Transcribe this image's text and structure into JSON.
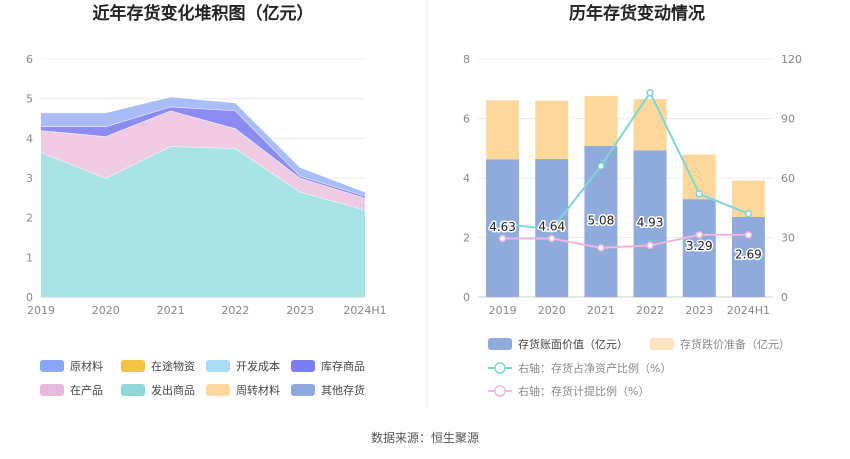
{
  "left_chart": {
    "title": "近年存货变化堆积图（亿元）",
    "legend": [
      {
        "name": "原材料",
        "color": "#8aa8f5"
      },
      {
        "name": "在途物资",
        "color": "#f5c342"
      },
      {
        "name": "开发成本",
        "color": "#a8dcf5"
      },
      {
        "name": "库存商品",
        "color": "#7b7df0"
      },
      {
        "name": "在产品",
        "color": "#e9b8dd"
      },
      {
        "name": "发出商品",
        "color": "#8fd8d8"
      },
      {
        "name": "周转材料",
        "color": "#fdd89a"
      },
      {
        "name": "其他存货",
        "color": "#8fa9db"
      }
    ]
  },
  "right_chart": {
    "title": "历年存货变动情况",
    "legend": [
      {
        "name": "存货账面价值（亿元）",
        "color": "#8fabdc",
        "kind": "box",
        "dim": false
      },
      {
        "name": "存货跌价准备（亿元）",
        "color": "#fde4bc",
        "kind": "box",
        "dim": true
      },
      {
        "name": "右轴：存货占净资产比例（%）",
        "color": "#7fd6d6",
        "kind": "line",
        "dim": true
      },
      {
        "name": "右轴：存货计提比例（%）",
        "color": "#f0b6dc",
        "kind": "line",
        "dim": true
      }
    ]
  },
  "source": "数据来源：恒生聚源",
  "chart_data": [
    {
      "type": "area",
      "stacked": true,
      "title": "近年存货变化堆积图（亿元）",
      "categories": [
        "2019",
        "2020",
        "2021",
        "2022",
        "2023",
        "2024H1"
      ],
      "ylim": [
        0,
        6
      ],
      "yticks": [
        0,
        1,
        2,
        3,
        4,
        5,
        6
      ],
      "grid": true,
      "legend_position": "bottom",
      "series": [
        {
          "name": "发出商品",
          "color": "#a8e2e2",
          "values": [
            3.65,
            3.0,
            3.8,
            3.75,
            2.65,
            2.2
          ]
        },
        {
          "name": "在产品",
          "color": "#efcae5",
          "values": [
            0.55,
            1.05,
            0.9,
            0.5,
            0.35,
            0.3
          ]
        },
        {
          "name": "库存商品",
          "color": "#8a8cf2",
          "values": [
            0.1,
            0.25,
            0.1,
            0.45,
            0.05,
            0.05
          ]
        },
        {
          "name": "开发成本",
          "color": "#c2e6f7",
          "values": [
            0.0,
            0.0,
            0.0,
            0.0,
            0.0,
            0.0
          ]
        },
        {
          "name": "原材料",
          "color": "#a8bcf7",
          "values": [
            0.35,
            0.35,
            0.25,
            0.2,
            0.22,
            0.1
          ]
        },
        {
          "name": "在途物资",
          "color": "#f5c342",
          "values": [
            0,
            0,
            0,
            0,
            0,
            0
          ]
        },
        {
          "name": "周转材料",
          "color": "#fdd89a",
          "values": [
            0,
            0,
            0,
            0,
            0,
            0
          ]
        },
        {
          "name": "其他存货",
          "color": "#8fa9db",
          "values": [
            0,
            0,
            0,
            0,
            0,
            0
          ]
        }
      ]
    },
    {
      "type": "bar",
      "stacked": true,
      "title": "历年存货变动情况",
      "categories": [
        "2019",
        "2020",
        "2021",
        "2022",
        "2023",
        "2024H1"
      ],
      "ylim": [
        0,
        8
      ],
      "yticks": [
        0,
        2,
        4,
        6,
        8
      ],
      "y2lim": [
        0,
        120
      ],
      "y2ticks": [
        0,
        30,
        60,
        90,
        120
      ],
      "grid": true,
      "legend_position": "bottom",
      "series": [
        {
          "name": "存货账面价值（亿元）",
          "axis": "left",
          "kind": "bar",
          "color": "#8fabdc",
          "values": [
            4.63,
            4.64,
            5.08,
            4.93,
            3.29,
            2.69
          ],
          "labels": [
            "4.63",
            "4.64",
            "5.08",
            "4.93",
            "3.29",
            "2.69"
          ]
        },
        {
          "name": "存货跌价准备（亿元）",
          "axis": "left",
          "kind": "bar",
          "color": "#fdd89a",
          "values": [
            1.98,
            1.96,
            1.68,
            1.72,
            1.5,
            1.22
          ]
        },
        {
          "name": "右轴：存货占净资产比例（%）",
          "axis": "right",
          "kind": "line",
          "color": "#7fd6d6",
          "values": [
            37,
            34,
            66,
            103,
            52,
            42
          ]
        },
        {
          "name": "右轴：存货计提比例（%）",
          "axis": "right",
          "kind": "line",
          "color": "#f0b6dc",
          "values": [
            29.5,
            29.5,
            24.8,
            26,
            31.3,
            31.3
          ]
        }
      ]
    }
  ]
}
